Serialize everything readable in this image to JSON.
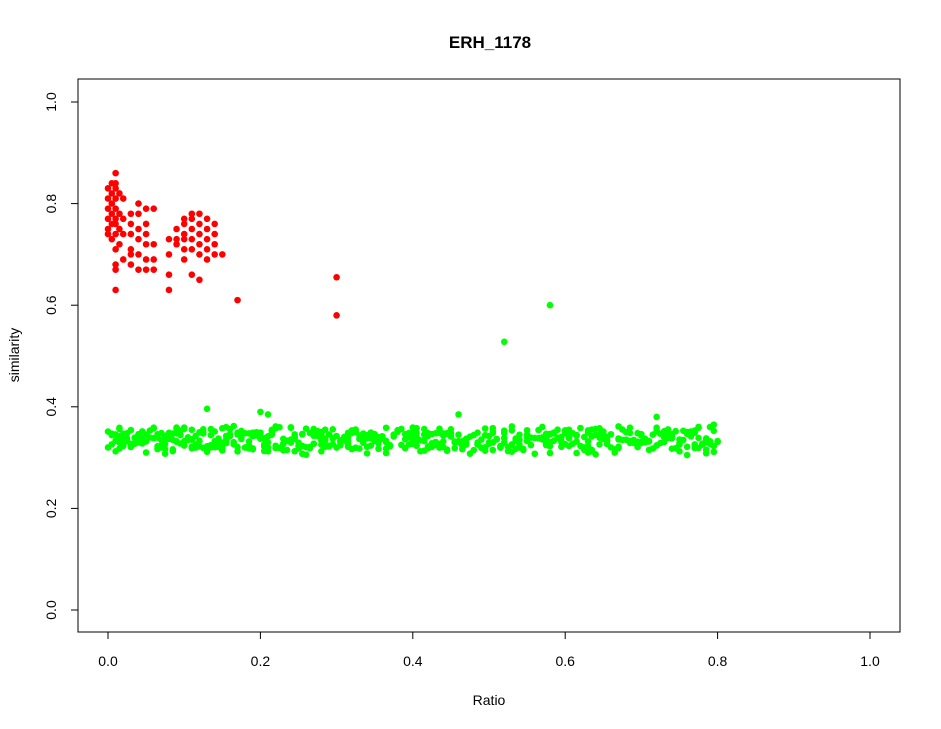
{
  "chart_data": {
    "type": "scatter",
    "title": "ERH_1178",
    "xlabel": "Ratio",
    "ylabel": "similarity",
    "xlim": [
      0,
      1
    ],
    "ylim": [
      0,
      1
    ],
    "xticks": [
      "0.0",
      "0.2",
      "0.4",
      "0.6",
      "0.8",
      "1.0"
    ],
    "yticks": [
      "0.0",
      "0.2",
      "0.4",
      "0.6",
      "0.8",
      "1.0"
    ],
    "grid": false,
    "legend": "none",
    "colors": {
      "red": "#ff0000",
      "green": "#00ff00"
    },
    "series": [
      {
        "color": "#ff0000",
        "points": [
          [
            0.0,
            0.83
          ],
          [
            0.0,
            0.81
          ],
          [
            0.0,
            0.79
          ],
          [
            0.0,
            0.77
          ],
          [
            0.0,
            0.75
          ],
          [
            0.0,
            0.74
          ],
          [
            0.005,
            0.84
          ],
          [
            0.005,
            0.82
          ],
          [
            0.005,
            0.8
          ],
          [
            0.005,
            0.78
          ],
          [
            0.005,
            0.76
          ],
          [
            0.005,
            0.73
          ],
          [
            0.01,
            0.86
          ],
          [
            0.01,
            0.84
          ],
          [
            0.01,
            0.83
          ],
          [
            0.01,
            0.81
          ],
          [
            0.01,
            0.79
          ],
          [
            0.01,
            0.77
          ],
          [
            0.01,
            0.76
          ],
          [
            0.01,
            0.74
          ],
          [
            0.01,
            0.71
          ],
          [
            0.01,
            0.68
          ],
          [
            0.01,
            0.67
          ],
          [
            0.01,
            0.63
          ],
          [
            0.015,
            0.82
          ],
          [
            0.015,
            0.78
          ],
          [
            0.015,
            0.75
          ],
          [
            0.015,
            0.72
          ],
          [
            0.02,
            0.81
          ],
          [
            0.02,
            0.77
          ],
          [
            0.02,
            0.74
          ],
          [
            0.02,
            0.69
          ],
          [
            0.03,
            0.78
          ],
          [
            0.03,
            0.76
          ],
          [
            0.03,
            0.74
          ],
          [
            0.03,
            0.71
          ],
          [
            0.03,
            0.7
          ],
          [
            0.03,
            0.68
          ],
          [
            0.04,
            0.8
          ],
          [
            0.04,
            0.78
          ],
          [
            0.04,
            0.75
          ],
          [
            0.04,
            0.73
          ],
          [
            0.04,
            0.7
          ],
          [
            0.04,
            0.67
          ],
          [
            0.05,
            0.79
          ],
          [
            0.05,
            0.76
          ],
          [
            0.05,
            0.74
          ],
          [
            0.05,
            0.72
          ],
          [
            0.05,
            0.69
          ],
          [
            0.05,
            0.67
          ],
          [
            0.06,
            0.79
          ],
          [
            0.06,
            0.72
          ],
          [
            0.06,
            0.69
          ],
          [
            0.06,
            0.67
          ],
          [
            0.08,
            0.73
          ],
          [
            0.08,
            0.7
          ],
          [
            0.08,
            0.66
          ],
          [
            0.08,
            0.63
          ],
          [
            0.09,
            0.75
          ],
          [
            0.09,
            0.73
          ],
          [
            0.09,
            0.72
          ],
          [
            0.1,
            0.77
          ],
          [
            0.1,
            0.76
          ],
          [
            0.1,
            0.74
          ],
          [
            0.1,
            0.73
          ],
          [
            0.1,
            0.71
          ],
          [
            0.1,
            0.69
          ],
          [
            0.11,
            0.78
          ],
          [
            0.11,
            0.77
          ],
          [
            0.11,
            0.75
          ],
          [
            0.11,
            0.73
          ],
          [
            0.11,
            0.71
          ],
          [
            0.11,
            0.66
          ],
          [
            0.12,
            0.78
          ],
          [
            0.12,
            0.76
          ],
          [
            0.12,
            0.74
          ],
          [
            0.12,
            0.72
          ],
          [
            0.12,
            0.7
          ],
          [
            0.12,
            0.65
          ],
          [
            0.13,
            0.77
          ],
          [
            0.13,
            0.75
          ],
          [
            0.13,
            0.73
          ],
          [
            0.13,
            0.71
          ],
          [
            0.13,
            0.69
          ],
          [
            0.14,
            0.76
          ],
          [
            0.14,
            0.74
          ],
          [
            0.14,
            0.72
          ],
          [
            0.14,
            0.7
          ],
          [
            0.15,
            0.7
          ],
          [
            0.17,
            0.61
          ],
          [
            0.3,
            0.655
          ],
          [
            0.3,
            0.58
          ]
        ]
      },
      {
        "color": "#00ff00",
        "points": [
          [
            0.52,
            0.528
          ],
          [
            0.58,
            0.6
          ],
          [
            0.13,
            0.396
          ],
          [
            0.2,
            0.39
          ],
          [
            0.21,
            0.385
          ],
          [
            0.46,
            0.385
          ],
          [
            0.72,
            0.38
          ],
          [
            0.05,
            0.31
          ],
          [
            0.76,
            0.305
          ]
        ],
        "band": {
          "x_from": 0.0,
          "x_to": 0.8,
          "x_step": 0.005,
          "y_center": 0.335,
          "y_spread": 0.03
        }
      }
    ]
  }
}
